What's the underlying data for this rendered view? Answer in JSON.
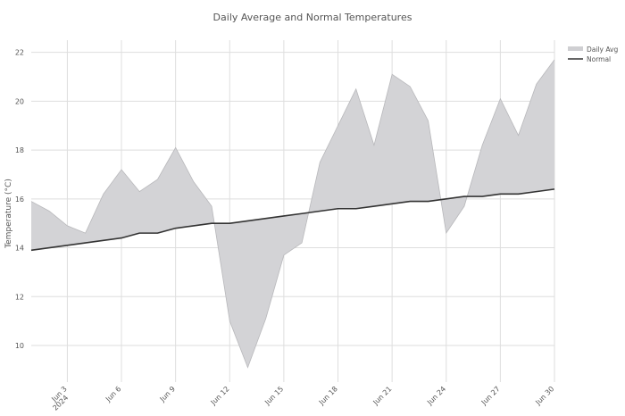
{
  "chart_data": {
    "type": "area",
    "title": "Daily Average and Normal Temperatures",
    "xlabel": "",
    "ylabel": "Temperature (°C)",
    "x": [
      "2024-06-01",
      "2024-06-02",
      "2024-06-03",
      "2024-06-04",
      "2024-06-05",
      "2024-06-06",
      "2024-06-07",
      "2024-06-08",
      "2024-06-09",
      "2024-06-10",
      "2024-06-11",
      "2024-06-12",
      "2024-06-13",
      "2024-06-14",
      "2024-06-15",
      "2024-06-16",
      "2024-06-17",
      "2024-06-18",
      "2024-06-19",
      "2024-06-20",
      "2024-06-21",
      "2024-06-22",
      "2024-06-23",
      "2024-06-24",
      "2024-06-25",
      "2024-06-26",
      "2024-06-27",
      "2024-06-28",
      "2024-06-29",
      "2024-06-30"
    ],
    "series": [
      {
        "name": "Daily Avg",
        "color": "#d3d3d6",
        "values": [
          15.9,
          15.5,
          14.9,
          14.6,
          16.2,
          17.2,
          16.3,
          16.8,
          18.1,
          16.7,
          15.7,
          11.0,
          9.1,
          11.1,
          13.7,
          14.2,
          17.5,
          19.0,
          20.5,
          18.2,
          21.1,
          20.6,
          19.2,
          14.6,
          15.7,
          18.2,
          20.1,
          18.6,
          20.7,
          21.7
        ]
      },
      {
        "name": "Normal",
        "color": "#333333",
        "values": [
          13.9,
          14.0,
          14.1,
          14.2,
          14.3,
          14.4,
          14.6,
          14.6,
          14.8,
          14.9,
          15.0,
          15.0,
          15.1,
          15.2,
          15.3,
          15.4,
          15.5,
          15.6,
          15.6,
          15.7,
          15.8,
          15.9,
          15.9,
          16.0,
          16.1,
          16.1,
          16.2,
          16.2,
          16.3,
          16.4
        ]
      }
    ],
    "x_ticks": [
      {
        "date": "2024-06-03",
        "label": "Jun 3",
        "sub": "2024"
      },
      {
        "date": "2024-06-06",
        "label": "Jun 6",
        "sub": ""
      },
      {
        "date": "2024-06-09",
        "label": "Jun 9",
        "sub": ""
      },
      {
        "date": "2024-06-12",
        "label": "Jun 12",
        "sub": ""
      },
      {
        "date": "2024-06-15",
        "label": "Jun 15",
        "sub": ""
      },
      {
        "date": "2024-06-18",
        "label": "Jun 18",
        "sub": ""
      },
      {
        "date": "2024-06-21",
        "label": "Jun 21",
        "sub": ""
      },
      {
        "date": "2024-06-24",
        "label": "Jun 24",
        "sub": ""
      },
      {
        "date": "2024-06-27",
        "label": "Jun 27",
        "sub": ""
      },
      {
        "date": "2024-06-30",
        "label": "Jun 30",
        "sub": ""
      }
    ],
    "y_ticks": [
      10,
      12,
      14,
      16,
      18,
      20,
      22
    ],
    "xlim": [
      "2024-06-01",
      "2024-06-30"
    ],
    "ylim": [
      8.5,
      22.5
    ],
    "grid": true,
    "legend": "top-right"
  }
}
